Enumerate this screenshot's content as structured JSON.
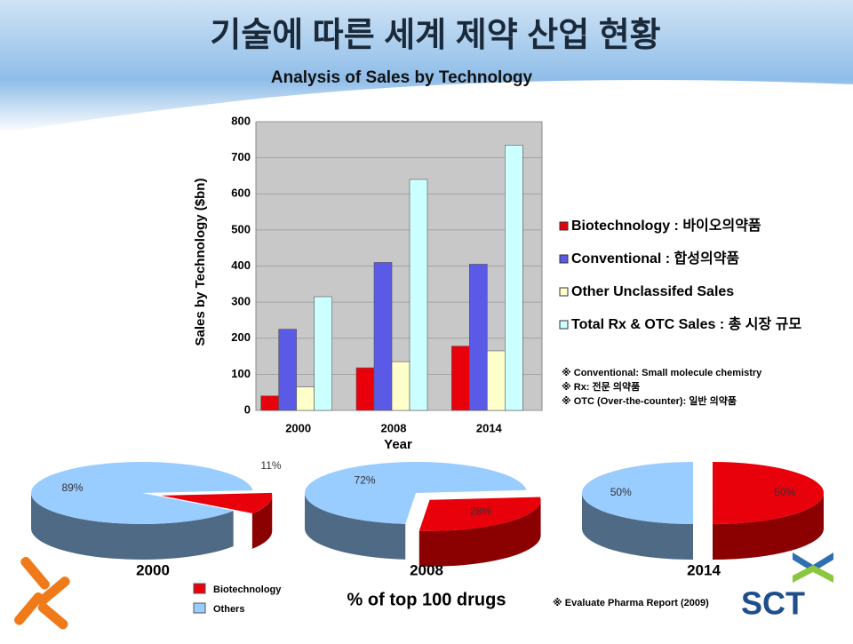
{
  "header": {
    "title": "기술에 따른 세계 제약 산업 현황"
  },
  "chart_data": [
    {
      "type": "bar",
      "title": "Analysis of Sales by Technology",
      "y_label": "Sales by Technology ($bn)",
      "x_label": "Year",
      "categories": [
        "2000",
        "2008",
        "2014"
      ],
      "series": [
        {
          "name": "Biotechnology : 바이오의약품",
          "color": "#e8000b",
          "values": [
            40,
            118,
            178
          ]
        },
        {
          "name": "Conventional : 합성의약품",
          "color": "#5a5ae6",
          "values": [
            225,
            410,
            405
          ]
        },
        {
          "name": "Other Unclassifed Sales",
          "color": "#ffffcc",
          "values": [
            65,
            135,
            165
          ]
        },
        {
          "name": "Total Rx & OTC Sales : 총 시장 규모",
          "color": "#ccffff",
          "values": [
            315,
            640,
            735
          ]
        }
      ],
      "ylim": [
        0,
        800
      ],
      "yticks": [
        0,
        100,
        200,
        300,
        400,
        500,
        600,
        700,
        800
      ]
    },
    {
      "type": "pie",
      "title": "2000",
      "categories": [
        "Biotechnology",
        "Others"
      ],
      "values": [
        11,
        89
      ],
      "value_labels": [
        "11%",
        "89%"
      ],
      "colors": [
        "#e8000b",
        "#99ccff"
      ]
    },
    {
      "type": "pie",
      "title": "2008",
      "categories": [
        "Biotechnology",
        "Others"
      ],
      "values": [
        28,
        72
      ],
      "value_labels": [
        "28%",
        "72%"
      ],
      "colors": [
        "#e8000b",
        "#99ccff"
      ]
    },
    {
      "type": "pie",
      "title": "2014",
      "categories": [
        "Biotechnology",
        "Others"
      ],
      "values": [
        50,
        50
      ],
      "value_labels": [
        "50%",
        "50%"
      ],
      "colors": [
        "#e8000b",
        "#99ccff"
      ]
    }
  ],
  "pie_caption": "% of top 100 drugs",
  "notes": [
    "※ Conventional: Small molecule chemistry",
    "※ Rx: 전문 의약품",
    "※ OTC (Over-the-counter): 일반 의약품"
  ],
  "source": "※ Evaluate Pharma Report (2009)",
  "logo": "SCT"
}
